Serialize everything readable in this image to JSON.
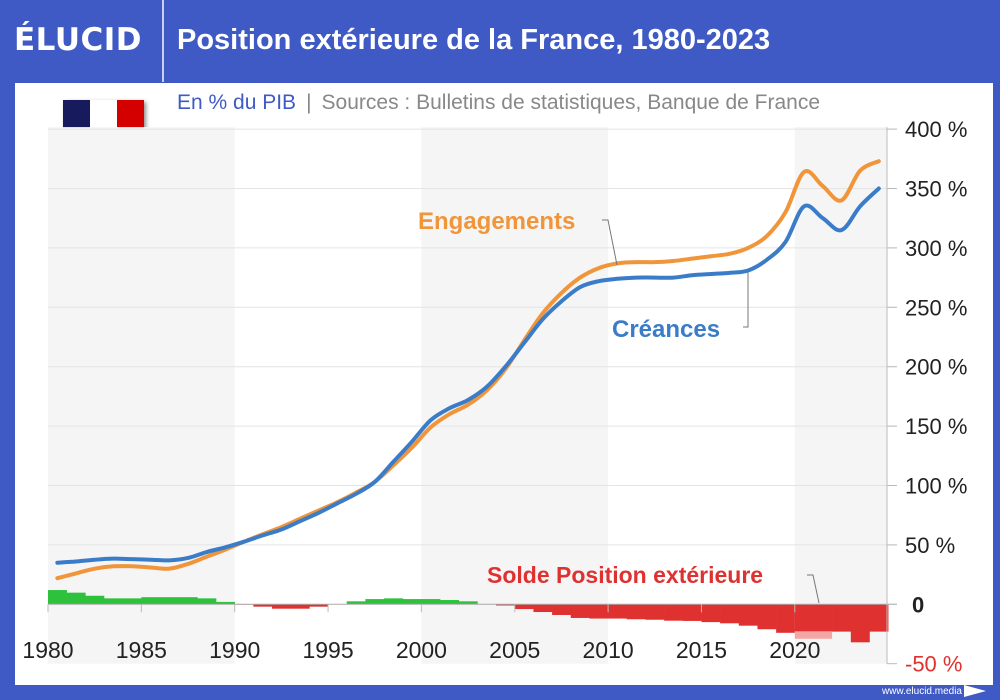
{
  "header": {
    "logo": "ÉLUCID",
    "title": "Position extérieure de la France, 1980-2023"
  },
  "subtitle": {
    "unit": "En % du PIB",
    "separator": "|",
    "source": "Sources : Bulletins de statistiques, Banque de France"
  },
  "footer": {
    "url": "www.elucid.media"
  },
  "colors": {
    "brand": "#3f5ac4",
    "engagements": "#f0953a",
    "creances": "#3a7cc8",
    "positive": "#2ec23c",
    "negative": "#e03131",
    "negative_light": "#f4a5a5",
    "flag_blue": "#171a5c",
    "flag_red": "#d40000"
  },
  "chart_data": {
    "type": "line+bar",
    "title": "Position extérieure de la France, 1980-2023",
    "ylabel": "En % du PIB",
    "ylim": [
      -50,
      400
    ],
    "grid": true,
    "x": [
      1980,
      1981,
      1982,
      1983,
      1984,
      1985,
      1986,
      1987,
      1988,
      1989,
      1990,
      1991,
      1992,
      1993,
      1994,
      1995,
      1996,
      1997,
      1998,
      1999,
      2000,
      2001,
      2002,
      2003,
      2004,
      2005,
      2006,
      2007,
      2008,
      2009,
      2010,
      2011,
      2012,
      2013,
      2014,
      2015,
      2016,
      2017,
      2018,
      2019,
      2020,
      2021,
      2022,
      2023,
      2024
    ],
    "x_ticks": [
      "1980",
      "1985",
      "1990",
      "1995",
      "2000",
      "2005",
      "2010",
      "2015",
      "2020"
    ],
    "y_ticks": [
      {
        "value": 400,
        "label": "400 %"
      },
      {
        "value": 350,
        "label": "350 %"
      },
      {
        "value": 300,
        "label": "300 %"
      },
      {
        "value": 250,
        "label": "250 %"
      },
      {
        "value": 200,
        "label": "200 %"
      },
      {
        "value": 150,
        "label": "150 %"
      },
      {
        "value": 100,
        "label": "100 %"
      },
      {
        "value": 50,
        "label": "50 %"
      },
      {
        "value": 0,
        "label": "0"
      },
      {
        "value": -50,
        "label": "-50 %"
      }
    ],
    "series": [
      {
        "name": "Engagements",
        "kind": "line",
        "values": [
          22,
          26,
          30,
          32,
          32,
          31,
          30,
          34,
          40,
          46,
          52.7,
          59,
          65,
          72,
          79,
          86,
          94,
          103,
          117,
          132,
          149,
          160,
          168,
          180,
          198,
          222,
          245,
          262,
          275,
          283,
          287,
          288,
          288,
          289,
          291,
          293,
          295,
          300,
          310,
          330,
          364,
          352,
          340,
          365,
          373
        ]
      },
      {
        "name": "Créances",
        "kind": "line",
        "values": [
          35,
          36,
          37.5,
          38.4,
          38,
          37.5,
          37,
          39,
          44,
          48,
          52.7,
          58,
          63,
          70,
          77,
          85,
          93,
          103,
          120,
          137,
          155,
          165,
          172,
          183,
          200,
          220,
          240,
          255,
          267,
          272,
          274,
          275,
          275,
          275,
          277,
          278,
          279,
          281,
          290,
          305,
          335,
          325,
          315,
          335,
          350
        ]
      },
      {
        "name": "Solde Position extérieure",
        "kind": "bar",
        "values": [
          12,
          9.8,
          7.2,
          5,
          5,
          6,
          6,
          6,
          5,
          2,
          -0.3,
          -2,
          -3.7,
          -3.7,
          -2,
          0,
          2.5,
          4.4,
          5,
          4.4,
          4.4,
          3.6,
          2.5,
          0,
          -1,
          -4,
          -6.5,
          -9,
          -11.5,
          -12,
          -12,
          -12.6,
          -13,
          -13.8,
          -14,
          -15,
          -16,
          -18,
          -21,
          -24,
          -22.7,
          -22.7,
          -23,
          -32,
          -23
        ],
        "light_extension": {
          "2020": -29,
          "2021": -29
        }
      }
    ]
  }
}
